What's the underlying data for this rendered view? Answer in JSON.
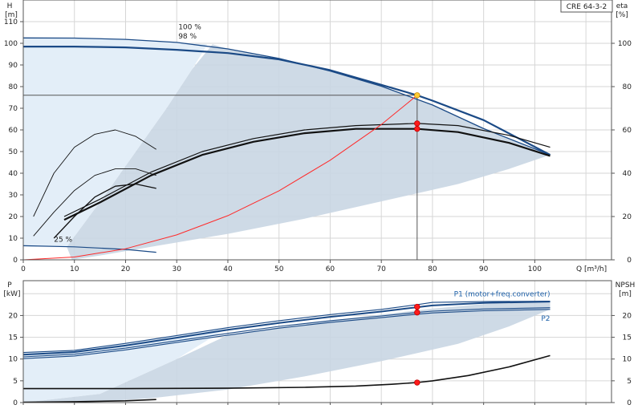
{
  "model_label": "CRE 64-3-2",
  "colors": {
    "region": "#c9d6e3",
    "region_light": "#e3eef8",
    "curve_blue": "#1b4a86",
    "curve_black": "#111111",
    "system_red": "#ff2a2a",
    "marker_red": "#ff1a1a",
    "marker_yellow": "#ffcc33",
    "duty_line": "#555555",
    "p1_label": "#1b5fa8"
  },
  "chart_data": [
    {
      "id": "head-efficiency",
      "type": "line",
      "x_label": "Q [m³/h]",
      "y_label_left": [
        "H",
        "[m]"
      ],
      "y_label_right": [
        "eta",
        "[%]"
      ],
      "xlim": [
        0,
        115
      ],
      "ylim": [
        0,
        120
      ],
      "y2lim": [
        0,
        120
      ],
      "x_ticks": [
        0,
        10,
        20,
        30,
        40,
        50,
        60,
        70,
        80,
        90,
        100
      ],
      "y_ticks": [
        0,
        10,
        20,
        30,
        40,
        50,
        60,
        70,
        80,
        90,
        100,
        110
      ],
      "y2_ticks": [
        0,
        20,
        40,
        60,
        80,
        100
      ],
      "grid": true,
      "series": [
        {
          "id": "h100",
          "role": "head",
          "color_key": "curve_blue",
          "width": 1.3,
          "label": "100 %",
          "label_at": [
            30,
            106.5
          ],
          "x": [
            0,
            10,
            20,
            30,
            40,
            50,
            60,
            70,
            80,
            90,
            103
          ],
          "y": [
            102.5,
            102.4,
            101.8,
            100.4,
            97.4,
            93.0,
            87.2,
            80.2,
            71.5,
            60.6,
            48.5
          ]
        },
        {
          "id": "h98",
          "role": "head",
          "color_key": "curve_blue",
          "width": 2.2,
          "label": "98 %",
          "label_at": [
            30,
            102.3
          ],
          "x": [
            0,
            10,
            20,
            30,
            40,
            50,
            60,
            70,
            77,
            80,
            90,
            103
          ],
          "y": [
            98.5,
            98.5,
            98.1,
            97.0,
            95.5,
            92.6,
            87.6,
            80.8,
            76.0,
            73.5,
            64.5,
            48.5
          ]
        },
        {
          "id": "eta100",
          "role": "efficiency",
          "color_key": "curve_black",
          "width": 1.2,
          "x": [
            8,
            15,
            25,
            35,
            45,
            55,
            65,
            77,
            85,
            95,
            103
          ],
          "y": [
            20,
            28,
            40.5,
            50,
            56,
            60,
            62,
            63,
            62,
            57.5,
            52
          ]
        },
        {
          "id": "eta98",
          "role": "efficiency",
          "color_key": "curve_black",
          "width": 2.2,
          "x": [
            8,
            15,
            25,
            35,
            45,
            55,
            65,
            77,
            85,
            95,
            103
          ],
          "y": [
            18.5,
            26.5,
            39,
            48.5,
            54.5,
            58.5,
            60.5,
            60.5,
            59,
            54,
            48
          ]
        },
        {
          "id": "h-min",
          "role": "head",
          "color_key": "curve_blue",
          "width": 1.2,
          "x": [
            0,
            10,
            20,
            26
          ],
          "y": [
            6.5,
            6.0,
            4.8,
            3.5
          ]
        },
        {
          "id": "eta-min-a",
          "role": "efficiency",
          "color_key": "curve_black",
          "width": 0.9,
          "x": [
            2,
            6,
            10,
            14,
            18,
            22,
            26
          ],
          "y": [
            20,
            40,
            52,
            58,
            60,
            57,
            51
          ]
        },
        {
          "id": "eta-min-b",
          "role": "efficiency",
          "color_key": "curve_black",
          "width": 0.9,
          "x": [
            2,
            6,
            10,
            14,
            18,
            22,
            26
          ],
          "y": [
            11,
            22,
            32,
            39,
            42,
            42,
            39
          ]
        },
        {
          "id": "eta-min-c",
          "role": "efficiency",
          "color_key": "curve_black",
          "width": 1.3,
          "x": [
            6,
            10,
            14,
            18,
            22,
            26
          ],
          "y": [
            10,
            20,
            29,
            34,
            35,
            33
          ]
        },
        {
          "id": "system",
          "role": "system-curve",
          "color_key": "system_red",
          "width": 1.0,
          "x": [
            0,
            10,
            20,
            30,
            40,
            50,
            60,
            70,
            77
          ],
          "y": [
            0,
            1.3,
            5.1,
            11.5,
            20.4,
            31.9,
            46,
            62.5,
            76
          ]
        }
      ],
      "regions": [
        {
          "id": "operating-area",
          "color_key": "region",
          "opacity": 0.9,
          "x": [
            8.5,
            16,
            22,
            28,
            33,
            37,
            40,
            50,
            60,
            70,
            80,
            90,
            103,
            103,
            95,
            85,
            70,
            55,
            40,
            25,
            15,
            9.5
          ],
          "y": [
            6,
            30,
            50,
            70,
            88,
            99.5,
            97.4,
            93.0,
            87.2,
            80.2,
            71.5,
            60.6,
            48.5,
            48.5,
            42,
            35,
            27,
            19,
            12,
            6,
            2,
            0
          ]
        },
        {
          "id": "light-area",
          "color_key": "region_light",
          "opacity": 1,
          "x": [
            0,
            0,
            10,
            20,
            30,
            36,
            33,
            28,
            22,
            16,
            8.5,
            0
          ],
          "y": [
            0,
            102.5,
            102.4,
            101.8,
            100.4,
            99.5,
            88,
            70,
            50,
            30,
            6,
            6
          ]
        }
      ],
      "annotations": [
        {
          "id": "min-speed-label",
          "text": "25 %",
          "x": 6,
          "y": 9.5
        }
      ],
      "duty_point": {
        "q": 77,
        "h": 76
      },
      "markers": [
        {
          "id": "duty-point",
          "x": 77,
          "y": 76,
          "axis": "left",
          "color_key": "marker_yellow"
        },
        {
          "id": "eta-point-upper",
          "x": 77,
          "y": 63,
          "axis": "right",
          "color_key": "marker_red"
        },
        {
          "id": "eta-point-lower",
          "x": 77,
          "y": 60.5,
          "axis": "right",
          "color_key": "marker_red"
        }
      ]
    },
    {
      "id": "power-npsh",
      "type": "line",
      "y_label_left": [
        "P",
        "[kW]"
      ],
      "y_label_right": [
        "NPSH",
        "[m]"
      ],
      "xlim": [
        0,
        115
      ],
      "ylim": [
        0,
        28
      ],
      "y2lim": [
        0,
        28
      ],
      "y_ticks": [
        0,
        5,
        10,
        15,
        20
      ],
      "y2_ticks": [
        0,
        5,
        10,
        15,
        20
      ],
      "grid": true,
      "series": [
        {
          "id": "p1-upper",
          "role": "power",
          "color_key": "curve_blue",
          "width": 1.1,
          "x": [
            0,
            10,
            20,
            30,
            40,
            50,
            60,
            70,
            77,
            80,
            90,
            103
          ],
          "y": [
            11.5,
            12,
            13.6,
            15.4,
            17.2,
            18.8,
            20.2,
            21.4,
            22.5,
            23.0,
            23.2,
            23.3
          ]
        },
        {
          "id": "p1-main",
          "role": "power",
          "color_key": "curve_blue",
          "width": 2.0,
          "x": [
            0,
            10,
            20,
            30,
            40,
            50,
            60,
            70,
            77,
            80,
            90,
            103
          ],
          "y": [
            11,
            11.6,
            13.1,
            14.9,
            16.7,
            18.3,
            19.7,
            20.9,
            21.9,
            22.3,
            22.9,
            23.2
          ]
        },
        {
          "id": "p2-main",
          "role": "power",
          "color_key": "curve_blue",
          "width": 1.1,
          "x": [
            0,
            10,
            20,
            30,
            40,
            50,
            60,
            70,
            77,
            80,
            90,
            103
          ],
          "y": [
            10.5,
            11.1,
            12.5,
            14.2,
            15.9,
            17.5,
            18.8,
            19.9,
            20.7,
            21.0,
            21.5,
            21.8
          ]
        },
        {
          "id": "p2-lower",
          "role": "power",
          "color_key": "curve_blue",
          "width": 1.1,
          "x": [
            0,
            10,
            20,
            30,
            40,
            50,
            60,
            70,
            77,
            80,
            90,
            103
          ],
          "y": [
            10.1,
            10.7,
            12.1,
            13.8,
            15.5,
            17.1,
            18.4,
            19.5,
            20.3,
            20.6,
            21.1,
            21.4
          ]
        },
        {
          "id": "npsh",
          "role": "npsh",
          "color_key": "curve_black",
          "width": 1.6,
          "x": [
            0,
            20,
            40,
            55,
            65,
            72,
            77,
            80,
            87,
            95,
            103
          ],
          "y": [
            3.2,
            3.2,
            3.3,
            3.5,
            3.8,
            4.2,
            4.6,
            5.0,
            6.2,
            8.2,
            10.8
          ]
        },
        {
          "id": "p-min",
          "role": "power",
          "color_key": "curve_black",
          "width": 1.6,
          "x": [
            0,
            10,
            20,
            26
          ],
          "y": [
            0.1,
            0.2,
            0.4,
            0.7
          ]
        }
      ],
      "regions": [
        {
          "id": "power-area",
          "color_key": "region",
          "opacity": 0.9,
          "x": [
            0,
            15,
            30,
            40,
            50,
            60,
            70,
            80,
            90,
            103,
            103,
            95,
            85,
            70,
            55,
            40,
            25,
            12,
            0
          ],
          "y": [
            0,
            2,
            10,
            15.5,
            17.3,
            18.8,
            20.2,
            21.6,
            22.6,
            23.3,
            21.4,
            17.5,
            13.5,
            9.5,
            6,
            3,
            1,
            0,
            0
          ]
        },
        {
          "id": "power-light-area",
          "color_key": "region_light",
          "opacity": 1,
          "x": [
            0,
            0,
            10,
            20,
            30,
            40,
            30,
            15,
            0
          ],
          "y": [
            0,
            11.5,
            12,
            13.6,
            15.4,
            17.2,
            10,
            2,
            0
          ]
        }
      ],
      "labels": [
        {
          "id": "p1-label",
          "text": "P1 (motor+freq.converter)",
          "x": 103,
          "y": 25,
          "anchor": "end",
          "color_key": "p1_label"
        },
        {
          "id": "p2-label",
          "text": "P2",
          "x": 103,
          "y": 19.3,
          "anchor": "end",
          "color_key": "p1_label"
        }
      ],
      "markers": [
        {
          "id": "p1-point",
          "x": 77,
          "y": 22.0,
          "axis": "left",
          "color_key": "marker_red"
        },
        {
          "id": "p2-point",
          "x": 77,
          "y": 20.7,
          "axis": "left",
          "color_key": "marker_red"
        },
        {
          "id": "npsh-point",
          "x": 77,
          "y": 4.6,
          "axis": "right",
          "color_key": "marker_red"
        }
      ]
    }
  ]
}
